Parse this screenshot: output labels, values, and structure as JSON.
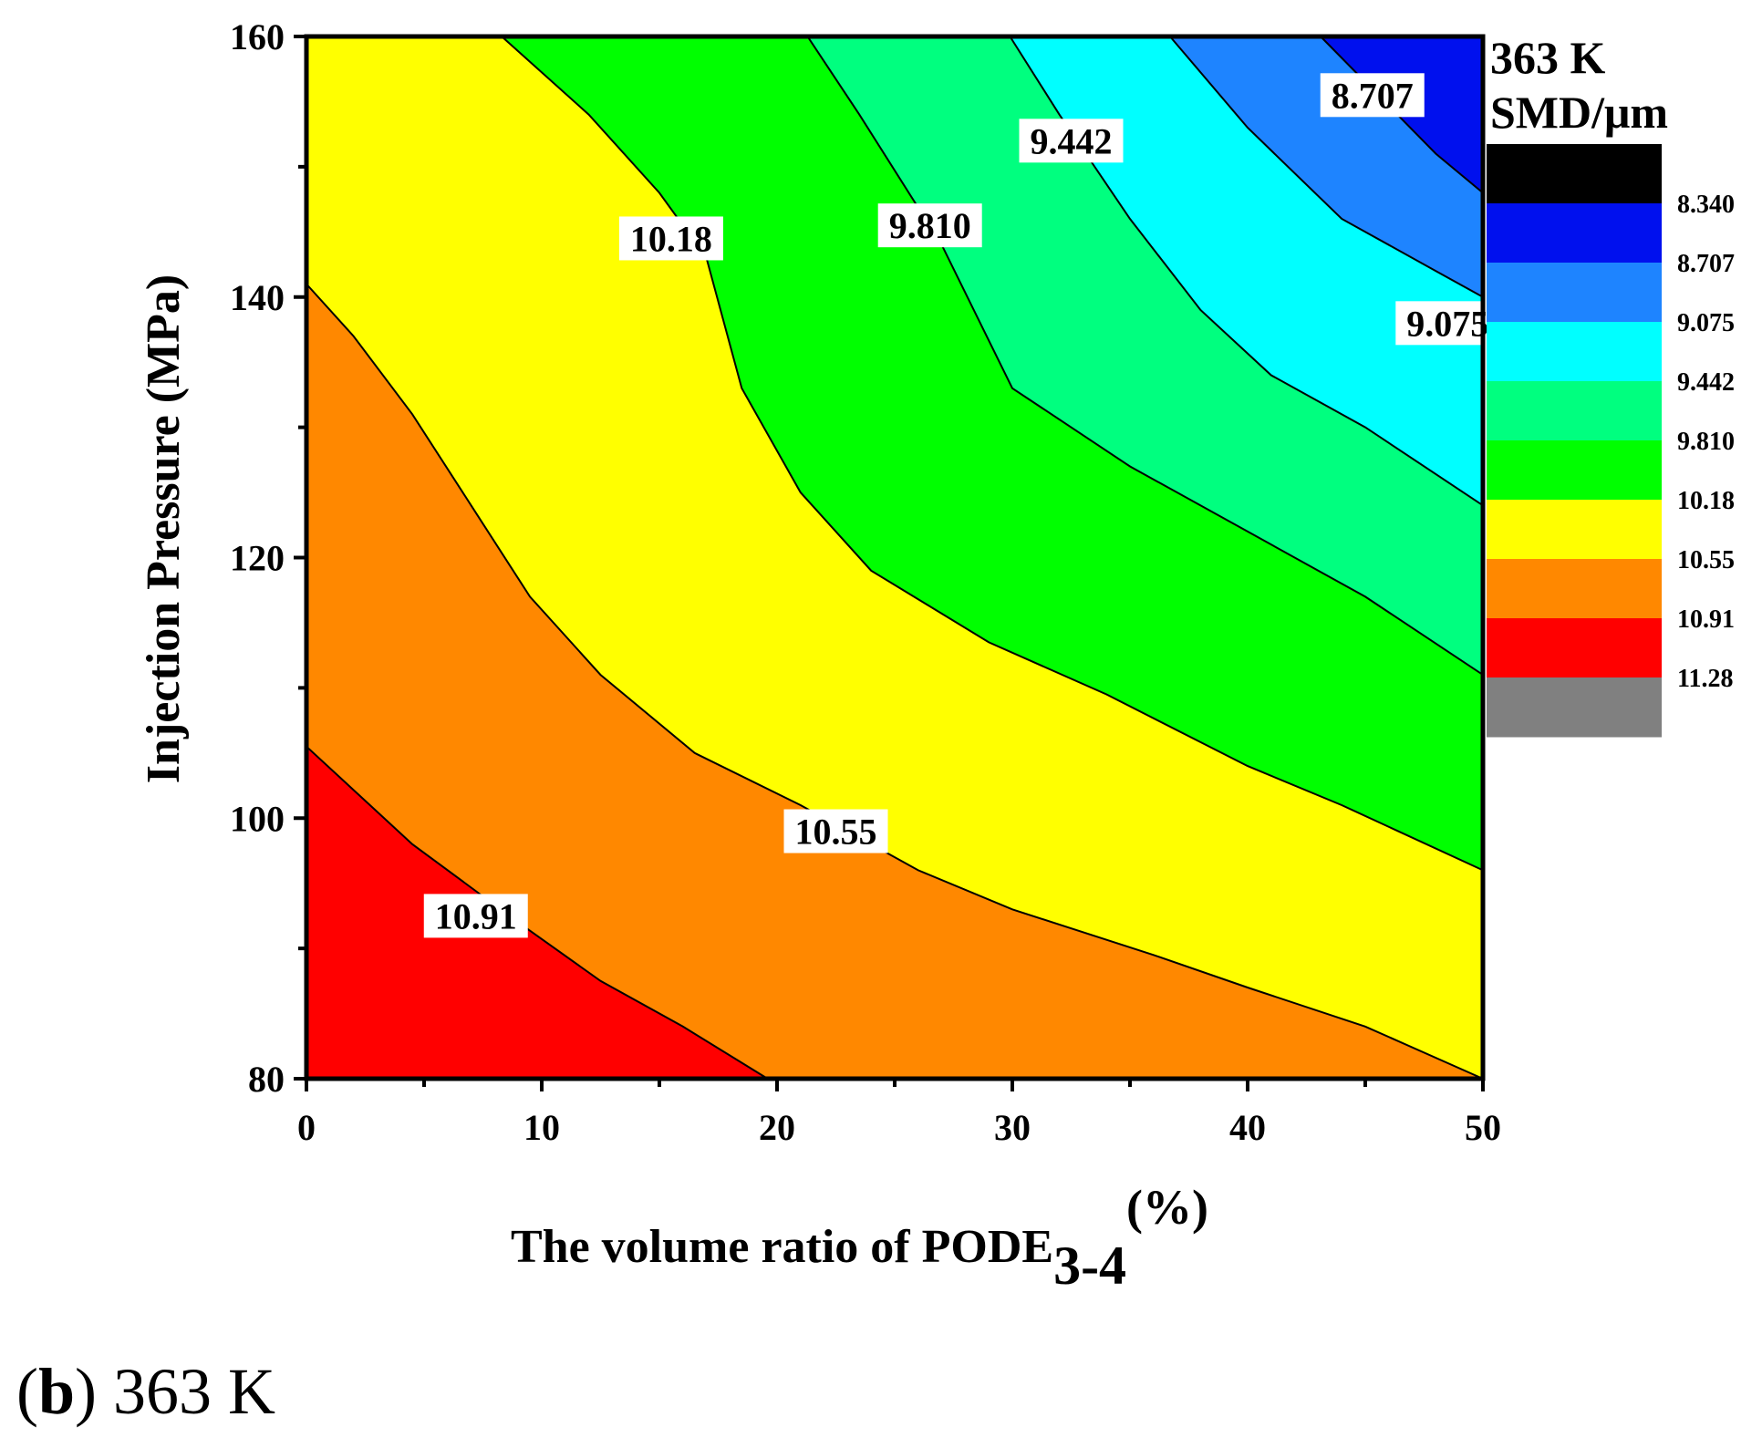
{
  "chart_data": {
    "type": "contour",
    "xlabel": "The volume ratio of PODE",
    "xlabel_subscript": "3-4",
    "xlabel_unit": "(%)",
    "ylabel": "Injection Pressure (MPa)",
    "xlim": [
      0,
      50
    ],
    "ylim": [
      80,
      160
    ],
    "x_ticks": [
      "0",
      "10",
      "20",
      "30",
      "40",
      "50"
    ],
    "y_ticks": [
      "80",
      "100",
      "120",
      "140",
      "160"
    ],
    "legend": {
      "title_line1": "363 K",
      "title_line2": "SMD/μm",
      "levels": [
        "8.340",
        "8.707",
        "9.075",
        "9.442",
        "9.810",
        "10.18",
        "10.55",
        "10.91",
        "11.28"
      ],
      "colors": [
        "#000000",
        "#0010ee",
        "#1e84ff",
        "#00ffff",
        "#00ff7f",
        "#00ff00",
        "#ffff00",
        "#ff8800",
        "#ff0000",
        "#808080"
      ]
    },
    "contour_lines": [
      {
        "level": "8.707",
        "points": [
          [
            43.1,
            160
          ],
          [
            48,
            151
          ],
          [
            50,
            148
          ]
        ]
      },
      {
        "level": "9.075",
        "points": [
          [
            36.7,
            160
          ],
          [
            40,
            153
          ],
          [
            44,
            146
          ],
          [
            48,
            142
          ],
          [
            50,
            140
          ]
        ]
      },
      {
        "level": "9.442",
        "points": [
          [
            29.9,
            160
          ],
          [
            32,
            154
          ],
          [
            35,
            146
          ],
          [
            38,
            139
          ],
          [
            41,
            134
          ],
          [
            45,
            130
          ],
          [
            50,
            124
          ]
        ]
      },
      {
        "level": "9.810",
        "points": [
          [
            21.3,
            160
          ],
          [
            23.5,
            154
          ],
          [
            27,
            144
          ],
          [
            30,
            133
          ],
          [
            35,
            127
          ],
          [
            40,
            122
          ],
          [
            45,
            117
          ],
          [
            50,
            111
          ]
        ]
      },
      {
        "level": "10.18",
        "points": [
          [
            8.3,
            160
          ],
          [
            12,
            154
          ],
          [
            15,
            148
          ],
          [
            17,
            143
          ],
          [
            18.5,
            133
          ],
          [
            21,
            125
          ],
          [
            24,
            119
          ],
          [
            29,
            113.5
          ],
          [
            34,
            109.5
          ],
          [
            40,
            104
          ],
          [
            44,
            101
          ],
          [
            50,
            96
          ]
        ]
      },
      {
        "level": "10.55",
        "points": [
          [
            0,
            141
          ],
          [
            2,
            137
          ],
          [
            4.5,
            131
          ],
          [
            7,
            124
          ],
          [
            9.5,
            117
          ],
          [
            12.5,
            111
          ],
          [
            16.5,
            105
          ],
          [
            21,
            101
          ],
          [
            26,
            96
          ],
          [
            30,
            93
          ],
          [
            36,
            89.5
          ],
          [
            40,
            87
          ],
          [
            45,
            84
          ],
          [
            50,
            80
          ]
        ]
      },
      {
        "level": "10.91",
        "points": [
          [
            0,
            105.5
          ],
          [
            4.5,
            98
          ],
          [
            9,
            92
          ],
          [
            12.5,
            87.5
          ],
          [
            16,
            84
          ],
          [
            19.6,
            80
          ]
        ]
      }
    ],
    "contour_labels": [
      {
        "text": "8.707",
        "x": 45.3,
        "y": 155.5
      },
      {
        "text": "9.442",
        "x": 32.5,
        "y": 152
      },
      {
        "text": "10.18",
        "x": 15.5,
        "y": 144.5
      },
      {
        "text": "9.810",
        "x": 26.5,
        "y": 145.5
      },
      {
        "text": "9.075",
        "x": 48.5,
        "y": 138
      },
      {
        "text": "10.55",
        "x": 22.5,
        "y": 99
      },
      {
        "text": "10.91",
        "x": 7.2,
        "y": 92.5
      }
    ],
    "fill_bands": [
      {
        "color": "#0010ee",
        "boundary_above": null,
        "boundary_below": "8.707"
      },
      {
        "color": "#1e84ff",
        "boundary_above": "8.707",
        "boundary_below": "9.075"
      },
      {
        "color": "#00ffff",
        "boundary_above": "9.075",
        "boundary_below": "9.442"
      },
      {
        "color": "#00ff7f",
        "boundary_above": "9.442",
        "boundary_below": "9.810"
      },
      {
        "color": "#00ff00",
        "boundary_above": "9.810",
        "boundary_below": "10.18"
      },
      {
        "color": "#ffff00",
        "boundary_above": "10.18",
        "boundary_below": "10.55"
      },
      {
        "color": "#ff8800",
        "boundary_above": "10.55",
        "boundary_below": "10.91"
      },
      {
        "color": "#ff0000",
        "boundary_above": "10.91",
        "boundary_below": null
      }
    ]
  },
  "caption": {
    "panel": "(b)",
    "panel_letter": "b",
    "text": "363 K"
  }
}
